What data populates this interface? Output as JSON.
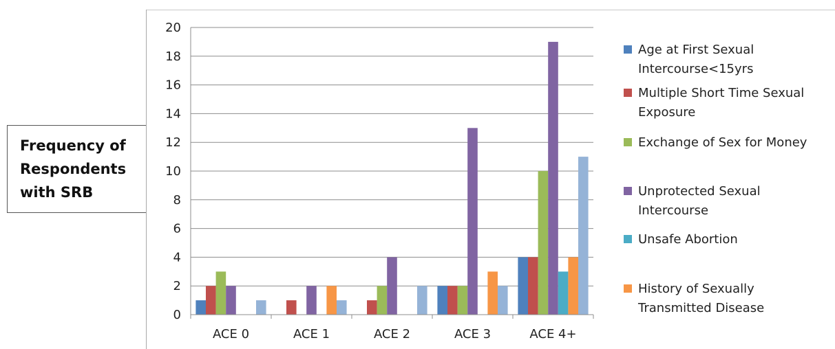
{
  "chart_data": {
    "type": "bar",
    "title": "",
    "ylabel": "Frequency of Respondents with SRB",
    "ylabel_lines": [
      "Frequency of",
      "Respondents",
      "with SRB"
    ],
    "xlabel": "",
    "ylim": [
      0,
      20
    ],
    "ytick_step": 2,
    "grid": true,
    "legend_position": "right",
    "categories": [
      "ACE 0",
      "ACE 1",
      "ACE 2",
      "ACE 3",
      "ACE 4+"
    ],
    "series": [
      {
        "name": "Age at First Sexual Intercourse<15yrs",
        "label_lines": [
          "Age at First Sexual",
          "Intercourse<15yrs"
        ],
        "color": "#4f81bd",
        "values": [
          1,
          0,
          0,
          2,
          4
        ]
      },
      {
        "name": "Multiple Short Time Sexual Exposure",
        "label_lines": [
          "Multiple Short Time Sexual",
          "Exposure"
        ],
        "color": "#c0504d",
        "values": [
          2,
          1,
          1,
          2,
          4
        ]
      },
      {
        "name": "Exchange of Sex for Money",
        "label_lines": [
          "Exchange of Sex for Money"
        ],
        "color": "#9bbb59",
        "values": [
          3,
          0,
          2,
          2,
          10
        ]
      },
      {
        "name": "Unprotected Sexual Intercourse",
        "label_lines": [
          "Unprotected Sexual",
          "Intercourse"
        ],
        "color": "#8064a2",
        "values": [
          2,
          2,
          4,
          13,
          19
        ]
      },
      {
        "name": "Unsafe Abortion",
        "label_lines": [
          "Unsafe Abortion"
        ],
        "color": "#4bacc6",
        "values": [
          0,
          0,
          0,
          0,
          3
        ]
      },
      {
        "name": "History of Sexually Transmitted Disease",
        "label_lines": [
          "History of Sexually",
          "Transmitted Disease"
        ],
        "color": "#f79646",
        "values": [
          0,
          2,
          0,
          3,
          4
        ]
      },
      {
        "name": "",
        "label_lines": [],
        "color": "#95b3d7",
        "values": [
          1,
          1,
          2,
          2,
          11
        ]
      }
    ]
  }
}
